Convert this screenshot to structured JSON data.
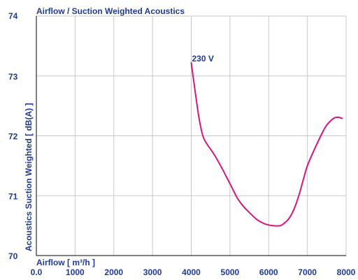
{
  "chart_data": {
    "type": "line",
    "title": "Airflow / Suction Weighted Acoustics",
    "xlabel": "Airflow [ m³/h ]",
    "ylabel": "Acoustics Suction Weighted [ dB(A) ]",
    "xlim": [
      0,
      8000
    ],
    "ylim": [
      70,
      74
    ],
    "x_ticks": [
      "0.0",
      "1000",
      "2000",
      "3000",
      "4000",
      "5000",
      "6000",
      "7000",
      "8000"
    ],
    "y_ticks": [
      "70",
      "71",
      "72",
      "73",
      "74"
    ],
    "grid": true,
    "colors": {
      "line": "#d6157e",
      "grid": "#c8c8c8",
      "text": "#1f3a93",
      "axis": "#000000"
    },
    "series": [
      {
        "annotation": "230 V",
        "x": [
          4000,
          4100,
          4200,
          4300,
          4400,
          4600,
          4800,
          5000,
          5200,
          5350,
          5500,
          5700,
          5900,
          6100,
          6300,
          6400,
          6500,
          6600,
          6700,
          6800,
          6900,
          7000,
          7200,
          7400,
          7500,
          7600,
          7700,
          7800,
          7900
        ],
        "y": [
          73.22,
          72.75,
          72.3,
          72.0,
          71.87,
          71.68,
          71.45,
          71.2,
          70.95,
          70.82,
          70.72,
          70.6,
          70.53,
          70.5,
          70.5,
          70.54,
          70.6,
          70.7,
          70.85,
          71.05,
          71.28,
          71.5,
          71.8,
          72.07,
          72.18,
          72.25,
          72.3,
          72.31,
          72.29
        ]
      }
    ]
  }
}
